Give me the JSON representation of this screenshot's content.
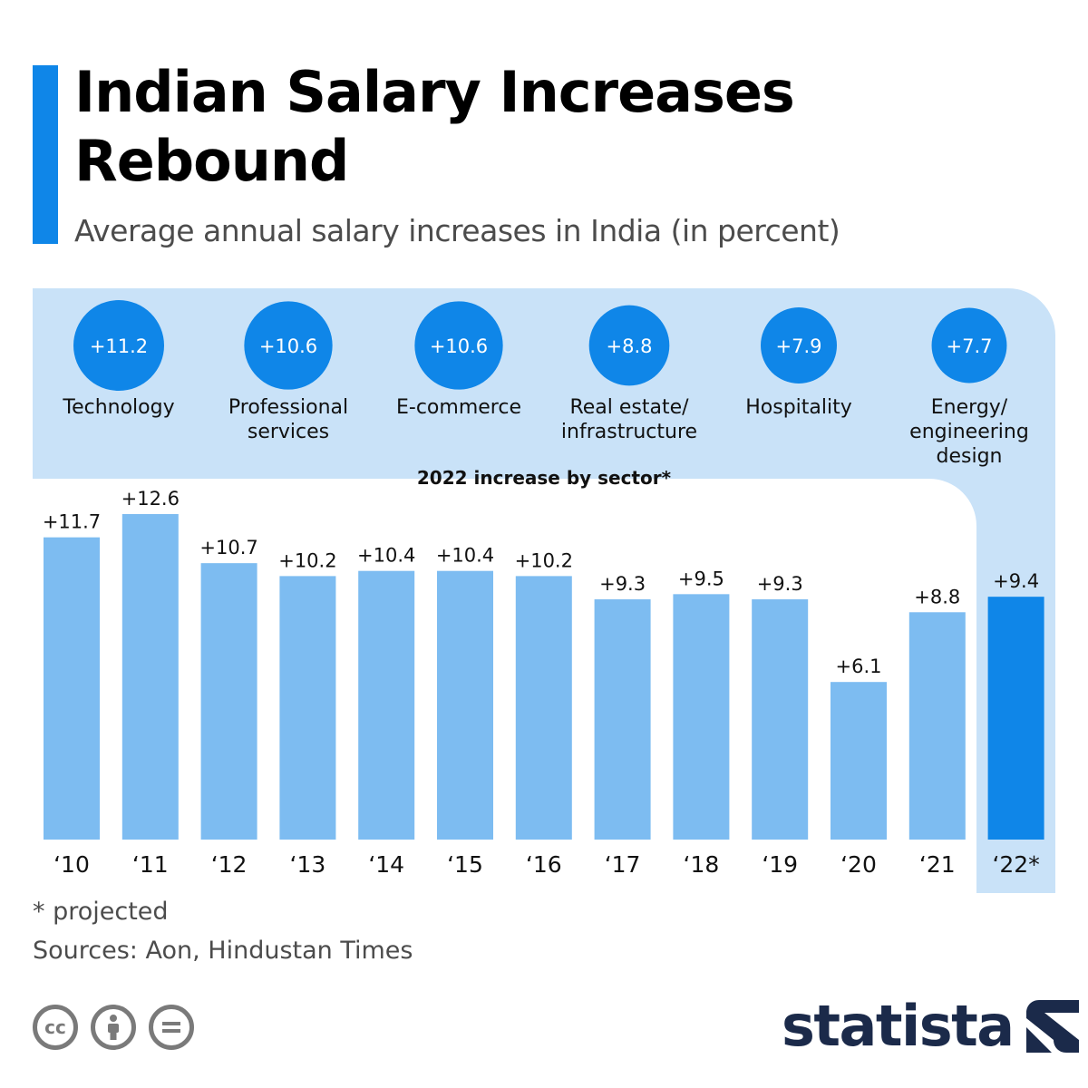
{
  "title": "Indian Salary Increases Rebound",
  "subtitle": "Average annual salary increases in India (in percent)",
  "colors": {
    "accent": "#0f86e8",
    "bar": "#7dbcf1",
    "bar_highlight": "#0f86e8",
    "panel": "#c9e2f8",
    "circle": "#0f86e8"
  },
  "chart_data": {
    "type": "bar",
    "title": "Average annual salary increases in India (in percent)",
    "xlabel": "",
    "ylabel": "",
    "ylim": [
      0,
      12.6
    ],
    "categories": [
      "‘10",
      "‘11",
      "‘12",
      "‘13",
      "‘14",
      "‘15",
      "‘16",
      "‘17",
      "‘18",
      "‘19",
      "‘20",
      "‘21",
      "‘22*"
    ],
    "values": [
      11.7,
      12.6,
      10.7,
      10.2,
      10.4,
      10.4,
      10.2,
      9.3,
      9.5,
      9.3,
      6.1,
      8.8,
      9.4
    ],
    "value_labels": [
      "+11.7",
      "+12.6",
      "+10.7",
      "+10.2",
      "+10.4",
      "+10.4",
      "+10.2",
      "+9.3",
      "+9.5",
      "+9.3",
      "+6.1",
      "+8.8",
      "+9.4"
    ],
    "highlight_index": 12,
    "sector_breakdown": {
      "label": "2022 increase by sector*",
      "sectors": [
        {
          "name": "Technology",
          "value_label": "+11.2",
          "value": 11.2
        },
        {
          "name": "Professional services",
          "value_label": "+10.6",
          "value": 10.6
        },
        {
          "name": "E-commerce",
          "value_label": "+10.6",
          "value": 10.6
        },
        {
          "name": "Real estate/ infrastructure",
          "value_label": "+8.8",
          "value": 8.8
        },
        {
          "name": "Hospitality",
          "value_label": "+7.9",
          "value": 7.9
        },
        {
          "name": "Energy/ engineering design",
          "value_label": "+7.7",
          "value": 7.7
        }
      ]
    }
  },
  "footnote": "* projected",
  "sources": "Sources: Aon, Hindustan Times",
  "license_icons": [
    "cc-icon",
    "attribution-icon",
    "no-derivatives-icon"
  ],
  "brand": {
    "name": "statista",
    "icon": "statista-logo-icon"
  }
}
